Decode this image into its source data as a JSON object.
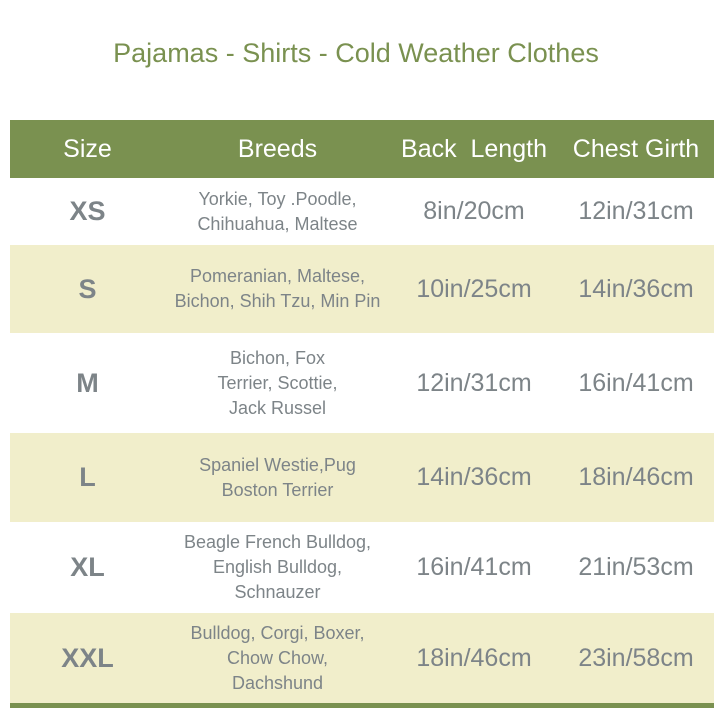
{
  "title": "Pajamas - Shirts - Cold Weather Clothes",
  "colors": {
    "accent": "#7a9150",
    "row_alt": "#f1eecb",
    "text": "#7d8488"
  },
  "headers": [
    "Size",
    "Breeds",
    "Back  Length",
    "Chest Girth"
  ],
  "rows": [
    {
      "size": "XS",
      "breeds": [
        "Yorkie, Toy .Poodle,",
        "Chihuahua, Maltese"
      ],
      "back": "8in/20cm",
      "chest": "12in/31cm"
    },
    {
      "size": "S",
      "breeds": [
        "Pomeranian, Maltese,",
        "Bichon, Shih Tzu, Min Pin"
      ],
      "back": "10in/25cm",
      "chest": "14in/36cm"
    },
    {
      "size": "M",
      "breeds": [
        "Bichon, Fox",
        "Terrier, Scottie,",
        "Jack Russel"
      ],
      "back": "12in/31cm",
      "chest": "16in/41cm"
    },
    {
      "size": "L",
      "breeds": [
        "Spaniel Westie,Pug",
        "Boston Terrier"
      ],
      "back": "14in/36cm",
      "chest": "18in/46cm"
    },
    {
      "size": "XL",
      "breeds": [
        "Beagle French Bulldog,",
        "English Bulldog,",
        "Schnauzer"
      ],
      "back": "16in/41cm",
      "chest": "21in/53cm"
    },
    {
      "size": "XXL",
      "breeds": [
        "Bulldog, Corgi, Boxer,",
        "Chow Chow,",
        "Dachshund"
      ],
      "back": "18in/46cm",
      "chest": "23in/58cm"
    }
  ]
}
